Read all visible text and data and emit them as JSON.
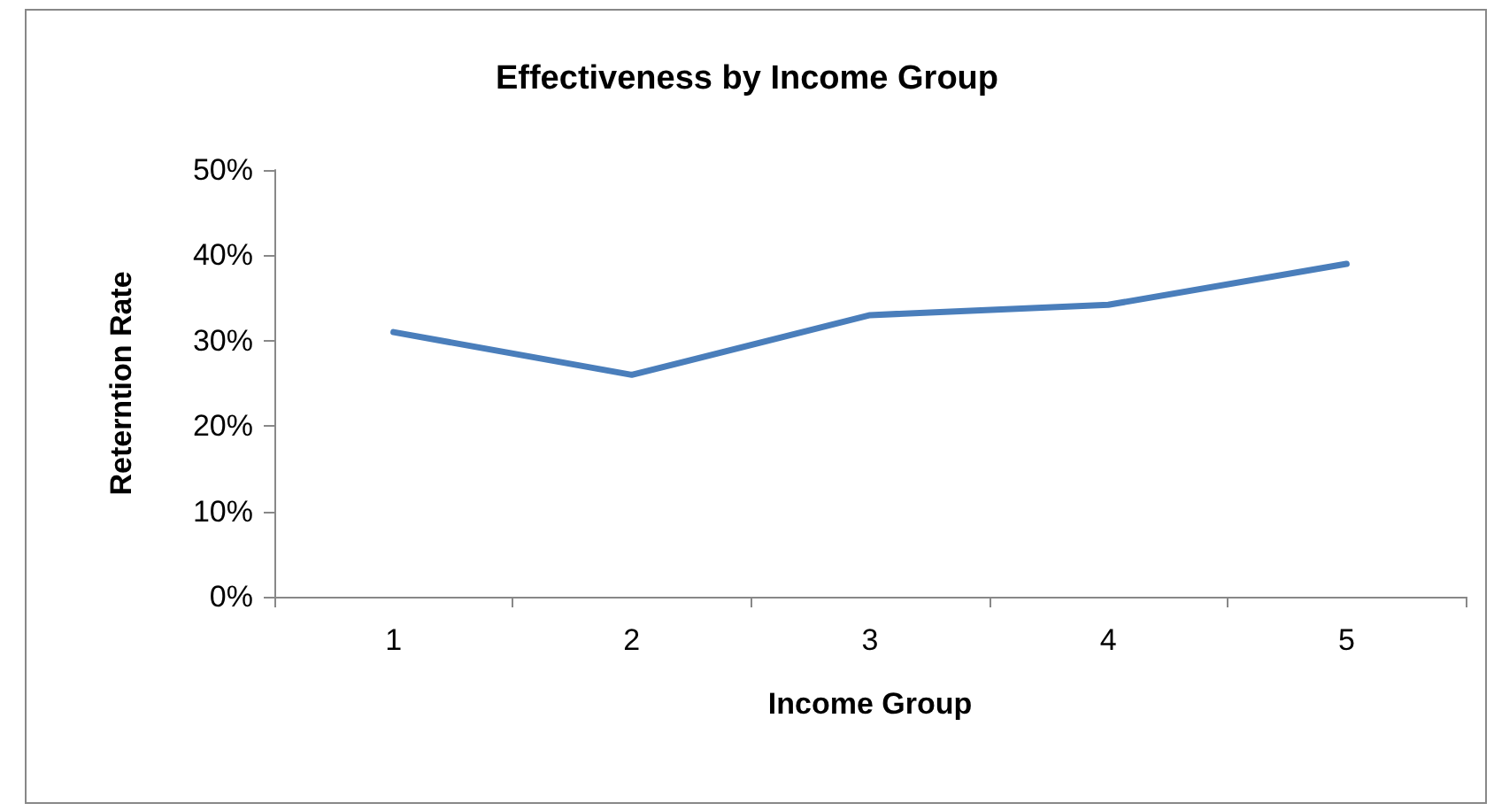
{
  "chart_data": {
    "type": "line",
    "title": "Effectiveness by Income Group",
    "xlabel": "Income Group",
    "ylabel": "Reterntion Rate",
    "categories": [
      "1",
      "2",
      "3",
      "4",
      "5"
    ],
    "series": [
      {
        "color": "#4a7ebb",
        "values": [
          31,
          26,
          33,
          34.2,
          39
        ]
      }
    ],
    "ylim": [
      0,
      50
    ],
    "yticks": [
      {
        "value": 0,
        "label": "0%"
      },
      {
        "value": 10,
        "label": "10%"
      },
      {
        "value": 20,
        "label": "20%"
      },
      {
        "value": 30,
        "label": "30%"
      },
      {
        "value": 40,
        "label": "40%"
      },
      {
        "value": 50,
        "label": "50%"
      }
    ],
    "marker": "none",
    "line_style": "solid"
  }
}
